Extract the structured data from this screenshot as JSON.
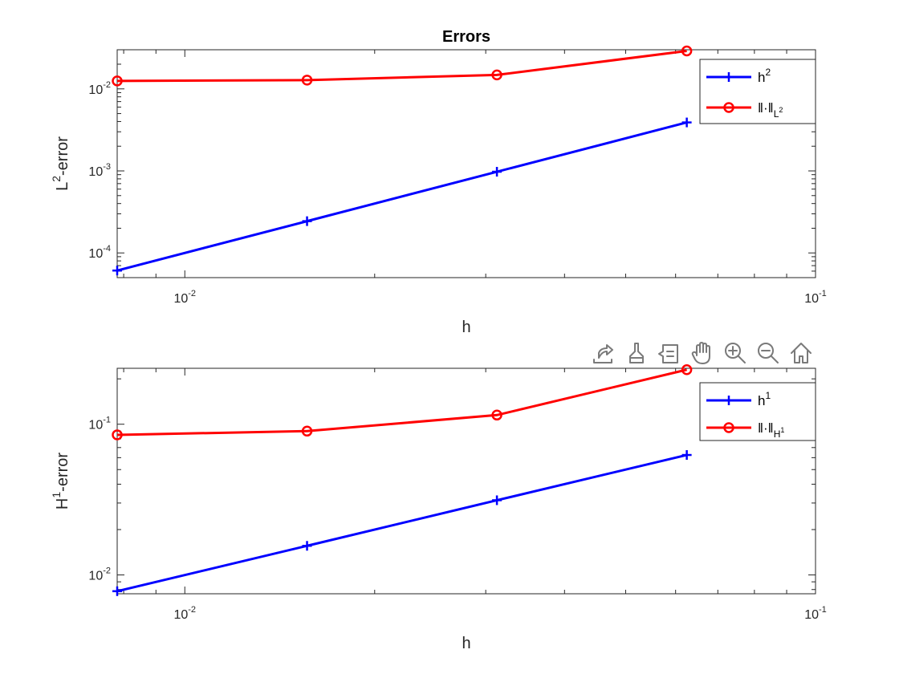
{
  "figure": {
    "toolbar": {
      "icons": [
        "export-icon",
        "brush-icon",
        "datatip-icon",
        "pan-hand-icon",
        "zoom-in-icon",
        "zoom-out-icon",
        "home-icon"
      ]
    }
  },
  "colors": {
    "blue": "#0000ff",
    "red": "#ff0000",
    "axis": "#262626",
    "toolbar_icon": "#7a7a7a"
  },
  "chart_data": [
    {
      "type": "line",
      "title": "Errors",
      "xlabel": "h",
      "ylabel": {
        "base": "L",
        "sup": "2",
        "rest": "-error"
      },
      "xscale": "log",
      "yscale": "log",
      "xlim": [
        0.0078125,
        0.1
      ],
      "ylim": [
        5e-05,
        0.03
      ],
      "xticks": [
        {
          "value": 0.01,
          "base": "10",
          "exp": "-2"
        },
        {
          "value": 0.1,
          "base": "10",
          "exp": "-1"
        }
      ],
      "yticks": [
        {
          "value": 0.0001,
          "base": "10",
          "exp": "-4"
        },
        {
          "value": 0.001,
          "base": "10",
          "exp": "-3"
        },
        {
          "value": 0.01,
          "base": "10",
          "exp": "-2"
        }
      ],
      "x": [
        0.0078125,
        0.015625,
        0.03125,
        0.0625
      ],
      "series": [
        {
          "name": {
            "base": "h",
            "sup": "2",
            "sub": ""
          },
          "color": "#0000ff",
          "marker": "plus",
          "values": [
            6.1e-05,
            0.000244,
            0.000977,
            0.0039
          ]
        },
        {
          "name": {
            "base": "‖·‖",
            "sup": "",
            "sub": "L",
            "subsup": "2"
          },
          "color": "#ff0000",
          "marker": "circle",
          "values": [
            0.0125,
            0.0128,
            0.0148,
            0.029
          ]
        }
      ],
      "legend": "top-right",
      "grid": false
    },
    {
      "type": "line",
      "title": "",
      "xlabel": "h",
      "ylabel": {
        "base": "H",
        "sup": "1",
        "rest": "-error"
      },
      "xscale": "log",
      "yscale": "log",
      "xlim": [
        0.0078125,
        0.1
      ],
      "ylim": [
        0.0075,
        0.235
      ],
      "xticks": [
        {
          "value": 0.01,
          "base": "10",
          "exp": "-2"
        },
        {
          "value": 0.1,
          "base": "10",
          "exp": "-1"
        }
      ],
      "yticks": [
        {
          "value": 0.01,
          "base": "10",
          "exp": "-2"
        },
        {
          "value": 0.1,
          "base": "10",
          "exp": "-1"
        }
      ],
      "x": [
        0.0078125,
        0.015625,
        0.03125,
        0.0625
      ],
      "series": [
        {
          "name": {
            "base": "h",
            "sup": "1",
            "sub": ""
          },
          "color": "#0000ff",
          "marker": "plus",
          "values": [
            0.0078,
            0.0156,
            0.0313,
            0.0625
          ]
        },
        {
          "name": {
            "base": "‖·‖",
            "sup": "",
            "sub": "H",
            "subsup": "1"
          },
          "color": "#ff0000",
          "marker": "circle",
          "values": [
            0.085,
            0.09,
            0.115,
            0.23
          ]
        }
      ],
      "legend": "top-right",
      "grid": false
    }
  ]
}
